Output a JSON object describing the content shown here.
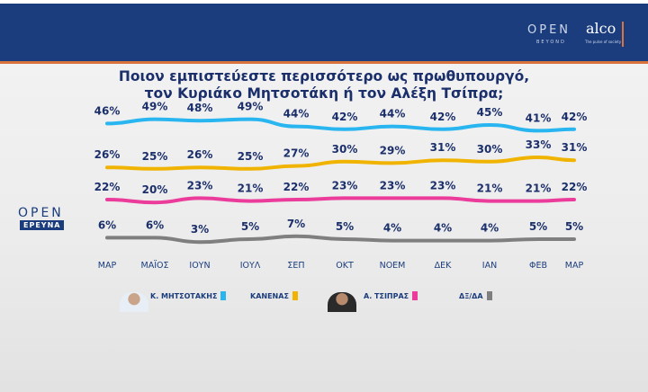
{
  "header": {
    "logo_open": "OPEN",
    "logo_beyond": "BEYOND",
    "logo_alco": "alco",
    "logo_tagline": "The pulse of society"
  },
  "title_line1": "Ποιον εμπιστεύεστε περισσότερο ως πρωθυπουργό,",
  "title_line2": "τον Κυριάκο Μητσοτάκη ή τον Αλέξη Τσίπρα;",
  "side_logo": {
    "open": "OPEN",
    "ereuna": "ΕΡΕΥΝΑ"
  },
  "chart_data": {
    "type": "line",
    "title": "Ποιον εμπιστεύεστε περισσότερο ως πρωθυπουργό, τον Κυριάκο Μητσοτάκη ή τον Αλέξη Τσίπρα;",
    "categories": [
      "ΜΑΡ",
      "ΜΑΪΟΣ",
      "ΙΟΥΝ",
      "ΙΟΥΛ",
      "ΣΕΠ",
      "ΟΚΤ",
      "ΝΟΕΜ",
      "ΔΕΚ",
      "ΙΑΝ",
      "ΦΕΒ",
      "ΜΑΡ"
    ],
    "series": [
      {
        "name": "Κ. ΜΗΤΣΟΤΑΚΗΣ",
        "color": "#29b6f0",
        "values": [
          46,
          49,
          48,
          49,
          44,
          42,
          44,
          42,
          45,
          41,
          42
        ]
      },
      {
        "name": "ΚΑΝΕΝΑΣ",
        "color": "#f0b400",
        "values": [
          26,
          25,
          26,
          25,
          27,
          30,
          29,
          31,
          30,
          33,
          31
        ]
      },
      {
        "name": "Α. ΤΣΙΠΡΑΣ",
        "color": "#ec3c9b",
        "values": [
          22,
          20,
          23,
          21,
          22,
          23,
          23,
          23,
          21,
          21,
          22
        ]
      },
      {
        "name": "ΔΞ/ΔΑ",
        "color": "#7f7f7f",
        "values": [
          6,
          6,
          3,
          5,
          7,
          5,
          4,
          4,
          4,
          5,
          5
        ]
      }
    ],
    "legend_position": "bottom",
    "grid": false,
    "unit": "%"
  }
}
